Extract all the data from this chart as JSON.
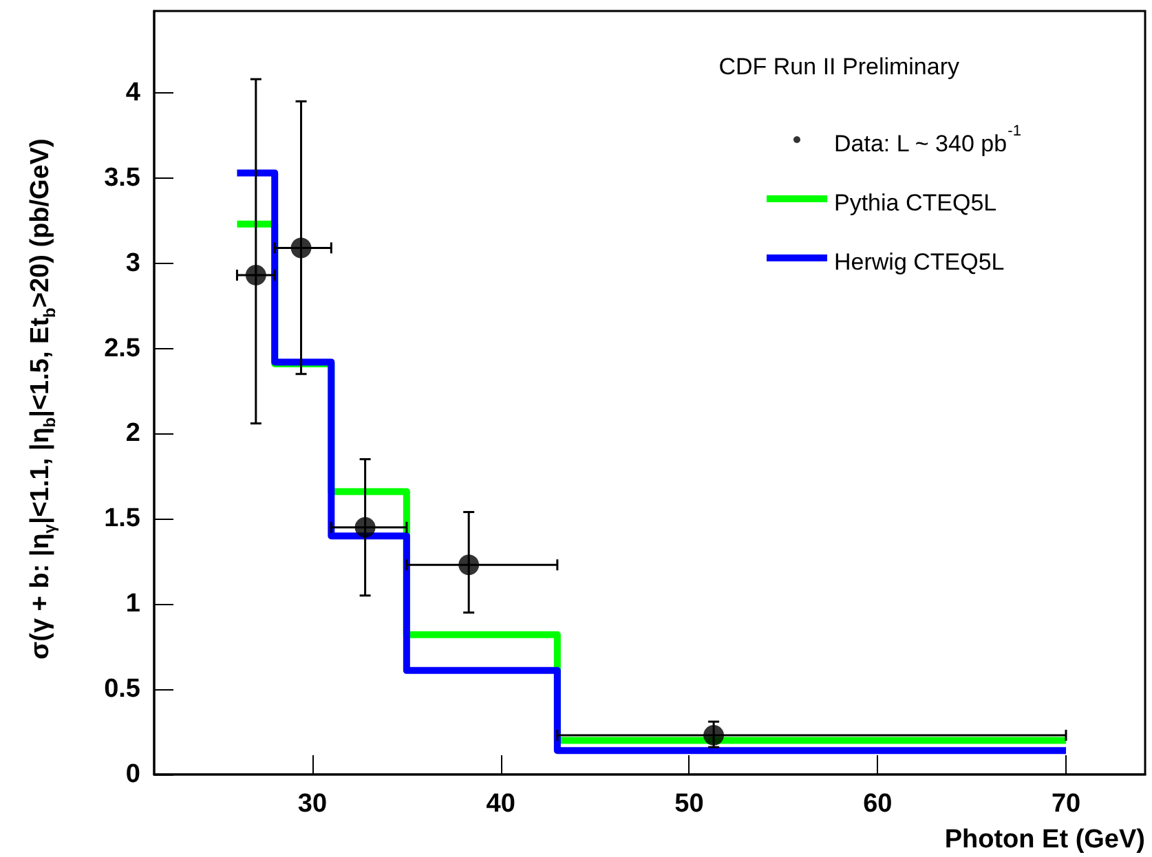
{
  "chart_data": {
    "type": "scatter",
    "xlabel": "Photon Et (GeV)",
    "ylabel": "σ(γ + b: |η$_{γ}$|<1.1, |η$_{b}$|<1.5, Et$_{b}$>20) (pb/GeV)",
    "legend_title": "CDF Run II Preliminary",
    "xlim": [
      21.6,
      74.2
    ],
    "xticks": [
      30,
      40,
      50,
      60,
      70
    ],
    "ylim": [
      0,
      4.48
    ],
    "yticks": [
      0,
      0.5,
      1,
      1.5,
      2,
      2.5,
      3,
      3.5,
      4
    ],
    "grid": false,
    "legend": "top right",
    "marker": "circle",
    "series": [
      {
        "name": "Data: L ~ 340 pb$^{-1}$",
        "color": "#000000",
        "x": [
          27.0,
          29.4,
          32.8,
          38.3,
          51.3
        ],
        "values": [
          2.93,
          3.09,
          1.45,
          1.23,
          0.23
        ],
        "errors": [
          [
            2.06,
            4.08
          ],
          [
            2.35,
            3.95
          ],
          [
            1.05,
            1.85
          ],
          [
            0.95,
            1.54
          ],
          [
            0.16,
            0.31
          ]
        ],
        "xerrors": [
          [
            26,
            28
          ],
          [
            28,
            31
          ],
          [
            31,
            35
          ],
          [
            35,
            43
          ],
          [
            43,
            70
          ]
        ]
      },
      {
        "name": "Pythia CTEQ5L",
        "type": "step",
        "marker": "none",
        "color": "#00ff00",
        "x": [
          26,
          28,
          31,
          35,
          43,
          70
        ],
        "values": [
          3.23,
          2.41,
          1.66,
          0.82,
          0.2,
          0.2
        ]
      },
      {
        "name": "Herwig CTEQ5L",
        "type": "step",
        "marker": "none",
        "color": "#0000ff",
        "x": [
          26,
          28,
          31,
          35,
          43,
          70
        ],
        "values": [
          3.53,
          2.42,
          1.4,
          0.61,
          0.14,
          0.14
        ]
      }
    ]
  }
}
